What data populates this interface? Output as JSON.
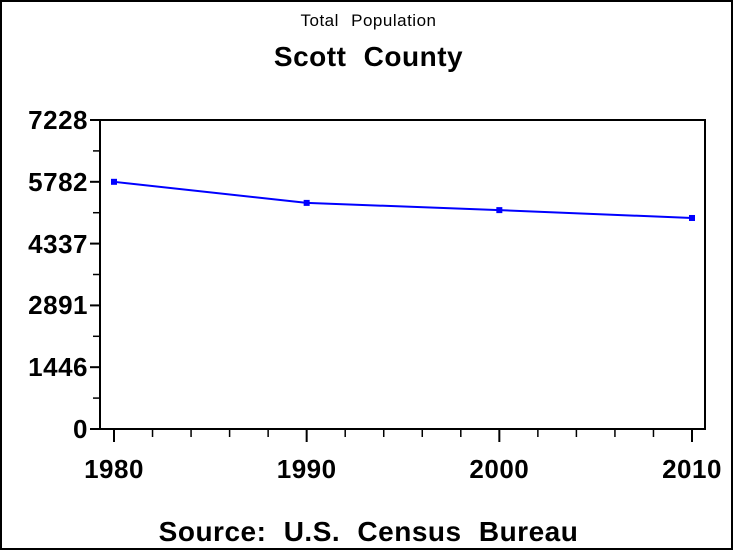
{
  "header": {
    "title": "Total Population",
    "subtitle": "Scott County"
  },
  "footer": {
    "text": "Source: U.S. Census Bureau"
  },
  "colors": {
    "background": "#ffffff",
    "text": "#000000",
    "axis": "#000000",
    "series": "#0000ff",
    "border": "#000000"
  },
  "chart_data": {
    "type": "line",
    "title": "Total Population",
    "subtitle": "Scott County",
    "source_note": "Source: U.S. Census Bureau",
    "x": [
      1980,
      1990,
      2000,
      2010
    ],
    "series": [
      {
        "name": "Total Population",
        "values": [
          5782,
          5289,
          5120,
          4936
        ]
      }
    ],
    "xlabel": "",
    "ylabel": "",
    "xlim": [
      1980,
      2010
    ],
    "ylim": [
      0,
      7228
    ],
    "x_ticks": [
      1980,
      1990,
      2000,
      2010
    ],
    "x_tick_labels": [
      "1980",
      "1990",
      "2000",
      "2010"
    ],
    "x_minor_tick_step_years": 2,
    "y_ticks": [
      0,
      1446,
      2891,
      4337,
      5782,
      7228
    ],
    "y_tick_labels": [
      "0",
      "1446",
      "2891",
      "4337",
      "5782",
      "7228"
    ],
    "y_minor_ticks_between_majors": 1,
    "grid": false,
    "legend_position": "none",
    "line_color": "#0000ff",
    "marker": "filled-square",
    "frame": "box"
  }
}
